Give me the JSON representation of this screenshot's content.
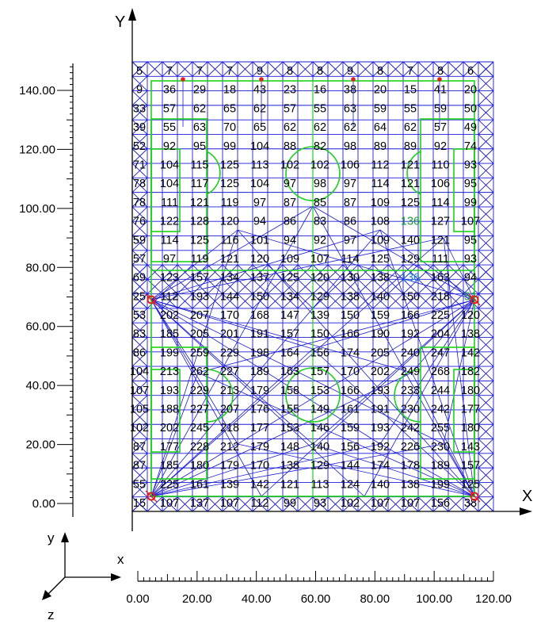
{
  "axes": {
    "x_letter": "X",
    "y_letter": "Y",
    "y_ticks": [
      "140.00",
      "120.00",
      "100.00",
      "80.00",
      "60.00",
      "40.00",
      "20.00",
      "0.00"
    ],
    "x_ticks": [
      "0.00",
      "20.00",
      "40.00",
      "60.00",
      "80.00",
      "100.00",
      "120.00"
    ]
  },
  "triad": {
    "x": "x",
    "y": "y",
    "z": "z"
  },
  "colors": {
    "mesh": "#1b1bd6",
    "lines": "#1dd11d",
    "support": "#e02020",
    "highlight": "#1a9a3a",
    "highlight_blue": "#1e7ad8"
  },
  "grid": {
    "rows": [
      [
        "5",
        "7",
        "7",
        "7",
        "9",
        "8",
        "8",
        "9",
        "8",
        "7",
        "8",
        "6"
      ],
      [
        "9",
        "36",
        "29",
        "18",
        "43",
        "23",
        "16",
        "38",
        "20",
        "15",
        "41",
        "20"
      ],
      [
        "33",
        "57",
        "62",
        "65",
        "62",
        "57",
        "55",
        "63",
        "59",
        "55",
        "59",
        "50"
      ],
      [
        "39",
        "55",
        "63",
        "70",
        "65",
        "62",
        "62",
        "62",
        "64",
        "62",
        "57",
        "49"
      ],
      [
        "52",
        "92",
        "95",
        "99",
        "104",
        "88",
        "82",
        "98",
        "89",
        "89",
        "92",
        "74"
      ],
      [
        "71",
        "104",
        "115",
        "125",
        "113",
        "102",
        "102",
        "106",
        "112",
        "121",
        "110",
        "93"
      ],
      [
        "78",
        "104",
        "117",
        "125",
        "104",
        "97",
        "98",
        "97",
        "114",
        "121",
        "106",
        "95"
      ],
      [
        "78",
        "111",
        "121",
        "119",
        "97",
        "87",
        "85",
        "87",
        "109",
        "125",
        "114",
        "99"
      ],
      [
        "76",
        "122",
        "128",
        "120",
        "94",
        "86",
        "83",
        "86",
        "108",
        "136",
        "127",
        "107"
      ],
      [
        "59",
        "114",
        "125",
        "116",
        "101",
        "94",
        "92",
        "97",
        "109",
        "140",
        "121",
        "95"
      ],
      [
        "57",
        "97",
        "119",
        "121",
        "120",
        "109",
        "107",
        "114",
        "125",
        "129",
        "111",
        "93"
      ],
      [
        "69",
        "123",
        "157",
        "134",
        "137",
        "125",
        "120",
        "130",
        "138",
        "136",
        "163",
        "94"
      ],
      [
        "25",
        "112",
        "193",
        "144",
        "150",
        "134",
        "129",
        "138",
        "140",
        "150",
        "218",
        "51"
      ],
      [
        "53",
        "202",
        "207",
        "170",
        "168",
        "147",
        "139",
        "150",
        "159",
        "166",
        "225",
        "120"
      ],
      [
        "83",
        "185",
        "205",
        "201",
        "191",
        "157",
        "150",
        "166",
        "190",
        "192",
        "204",
        "138"
      ],
      [
        "86",
        "199",
        "259",
        "229",
        "198",
        "164",
        "156",
        "174",
        "205",
        "240",
        "247",
        "142"
      ],
      [
        "104",
        "213",
        "262",
        "227",
        "189",
        "163",
        "157",
        "170",
        "202",
        "249",
        "268",
        "182"
      ],
      [
        "107",
        "193",
        "229",
        "213",
        "179",
        "158",
        "153",
        "166",
        "193",
        "233",
        "244",
        "180"
      ],
      [
        "105",
        "188",
        "227",
        "207",
        "176",
        "155",
        "149",
        "161",
        "191",
        "230",
        "242",
        "177"
      ],
      [
        "102",
        "202",
        "245",
        "218",
        "177",
        "153",
        "146",
        "159",
        "193",
        "242",
        "255",
        "180"
      ],
      [
        "87",
        "177",
        "228",
        "212",
        "179",
        "148",
        "140",
        "156",
        "192",
        "226",
        "230",
        "143"
      ],
      [
        "87",
        "185",
        "180",
        "179",
        "170",
        "138",
        "129",
        "144",
        "174",
        "178",
        "189",
        "157"
      ],
      [
        "55",
        "225",
        "161",
        "139",
        "142",
        "121",
        "113",
        "124",
        "140",
        "138",
        "199",
        "125"
      ],
      [
        "15",
        "107",
        "137",
        "107",
        "112",
        "99",
        "93",
        "102",
        "107",
        "107",
        "156",
        "38"
      ]
    ],
    "highlight": [
      [
        8,
        9
      ],
      [
        12,
        11
      ]
    ],
    "highlight_blue": [
      [
        11,
        9
      ]
    ]
  }
}
